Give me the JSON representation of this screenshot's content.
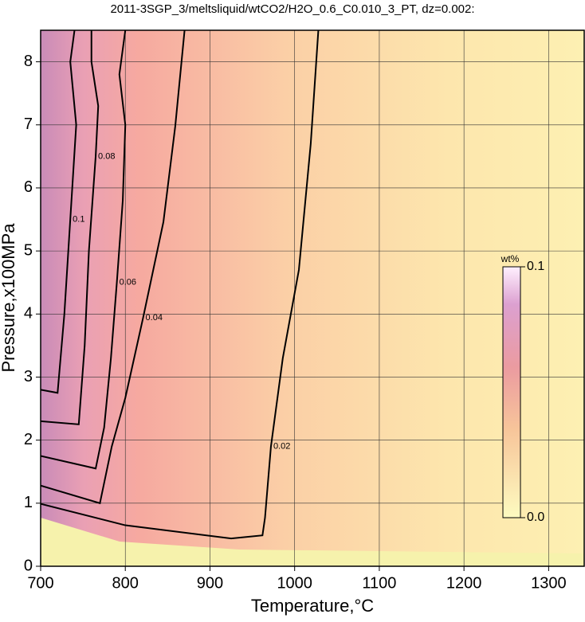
{
  "chart_data": {
    "type": "contour",
    "title": "2011-3SGP_3/meltsliquid/wtCO2/H2O_0.6_C0.010_3_PT, dz=0.002:",
    "x_label": "Temperature,°C",
    "y_label": "Pressure,x100MPa",
    "xlim": [
      700,
      1342
    ],
    "ylim": [
      0,
      8.5
    ],
    "xticks": [
      700,
      800,
      900,
      1000,
      1100,
      1200,
      1300
    ],
    "yticks": [
      0,
      1,
      2,
      3,
      4,
      5,
      6,
      7,
      8
    ],
    "grid": true,
    "contours": [
      {
        "level": 0.02,
        "x": [
          700,
          800,
          925,
          962,
          965,
          972,
          986,
          1005,
          1019,
          1028
        ],
        "y": [
          0.99,
          0.65,
          0.44,
          0.49,
          0.77,
          1.9,
          3.3,
          4.7,
          6.7,
          8.5
        ]
      },
      {
        "level": 0.04,
        "x": [
          700,
          770,
          784,
          800,
          821,
          845,
          859,
          870
        ],
        "y": [
          1.28,
          1.0,
          1.9,
          2.67,
          3.94,
          5.46,
          6.98,
          8.5
        ]
      },
      {
        "level": 0.06,
        "x": [
          700,
          765,
          775,
          783,
          790,
          797,
          800,
          793,
          800
        ],
        "y": [
          1.75,
          1.55,
          2.2,
          3.3,
          4.5,
          5.8,
          7.0,
          7.8,
          8.5
        ]
      },
      {
        "level": 0.08,
        "x": [
          700,
          745,
          752,
          757,
          765,
          768,
          760,
          760
        ],
        "y": [
          2.3,
          2.25,
          3.5,
          5.0,
          6.5,
          7.3,
          8.0,
          8.5
        ]
      },
      {
        "level": 0.1,
        "x": [
          700,
          720,
          728,
          735,
          742,
          735,
          740
        ],
        "y": [
          2.8,
          2.75,
          4.0,
          5.5,
          7.0,
          8.0,
          8.5
        ]
      }
    ],
    "colorbar": {
      "label": "wt%",
      "lim": [
        0,
        0.1
      ],
      "ticks": [
        {
          "value": 0,
          "label": "0.0"
        },
        0.1
      ]
    }
  }
}
